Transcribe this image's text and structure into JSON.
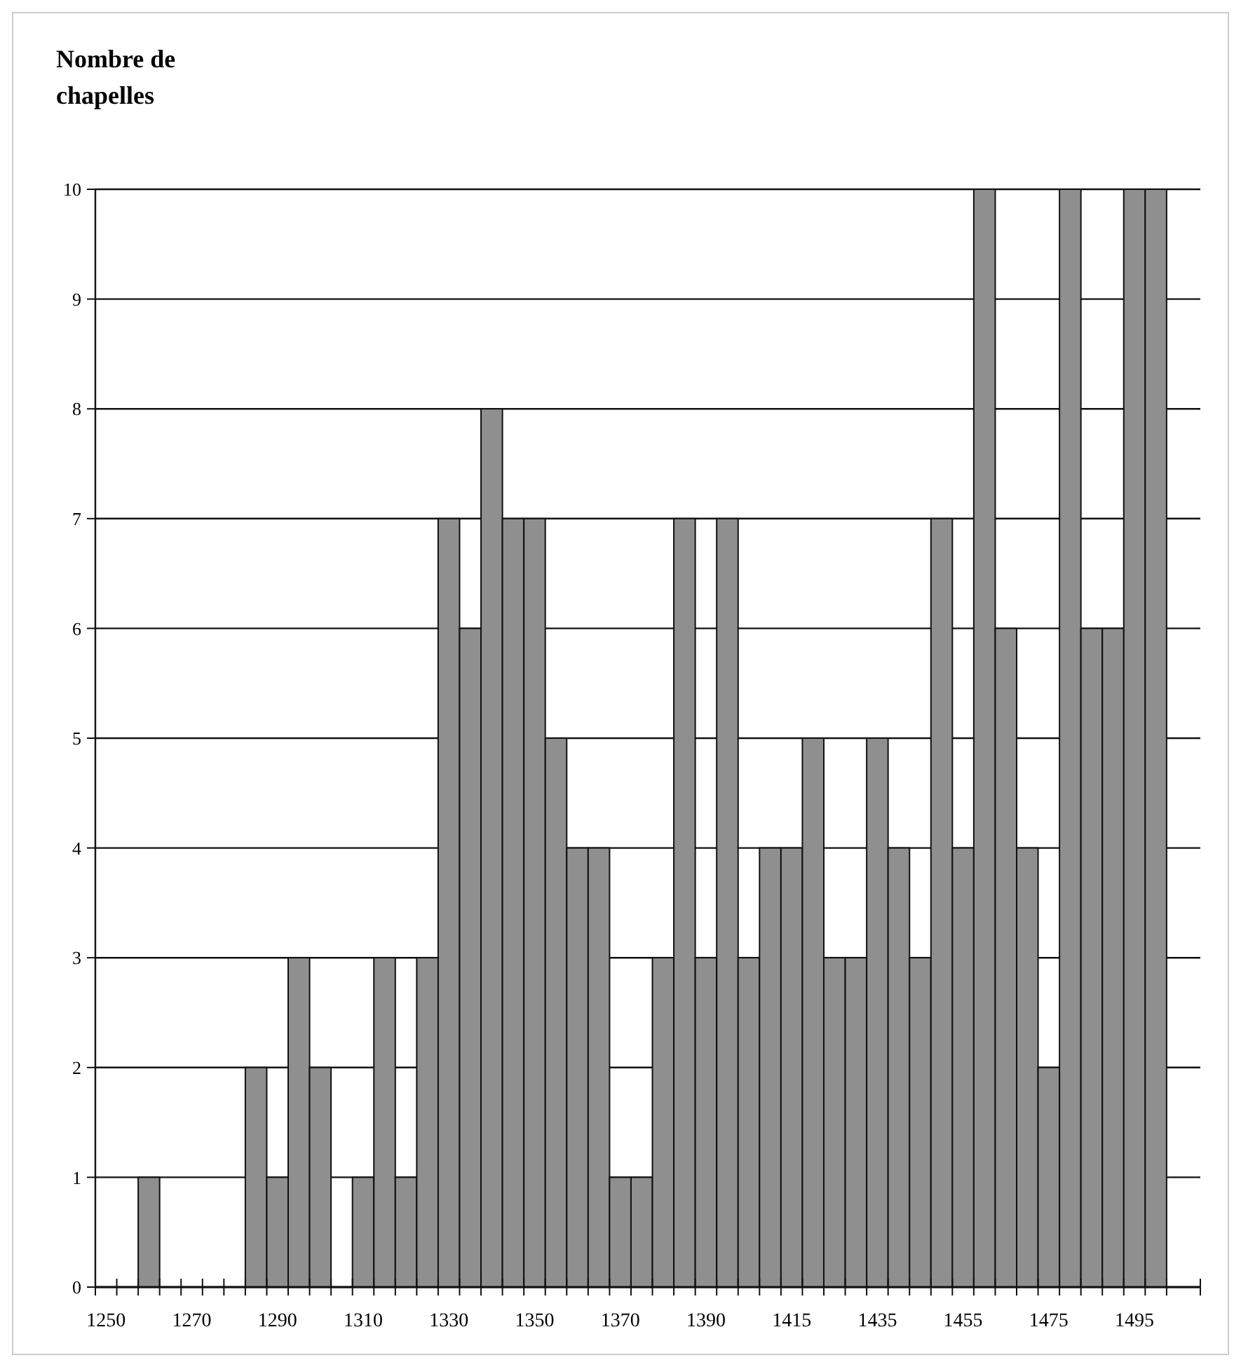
{
  "chart_data": {
    "type": "bar",
    "ylabel": "Nombre de chapelles",
    "categories": [
      "1250",
      null,
      null,
      null,
      "1270",
      null,
      null,
      null,
      "1290",
      null,
      null,
      null,
      "1310",
      null,
      null,
      null,
      "1330",
      null,
      null,
      null,
      "1350",
      null,
      null,
      null,
      "1370",
      null,
      null,
      null,
      "1390",
      null,
      null,
      null,
      "1415",
      null,
      null,
      null,
      "1435",
      null,
      null,
      null,
      "1455",
      null,
      null,
      null,
      "1475",
      null,
      null,
      null,
      "1495",
      null,
      null
    ],
    "values": [
      0,
      0,
      1,
      0,
      0,
      0,
      0,
      2,
      1,
      3,
      2,
      0,
      1,
      3,
      1,
      3,
      7,
      6,
      8,
      7,
      7,
      5,
      4,
      4,
      1,
      1,
      3,
      7,
      3,
      7,
      3,
      4,
      4,
      5,
      3,
      3,
      5,
      4,
      3,
      7,
      4,
      10,
      6,
      4,
      2,
      10,
      6,
      6,
      10,
      10,
      0
    ],
    "color": "#8f8f8f",
    "ylim": [
      0,
      10
    ],
    "yticks": [
      0,
      1,
      2,
      3,
      4,
      5,
      6,
      7,
      8,
      9,
      10
    ],
    "grid": "y"
  }
}
